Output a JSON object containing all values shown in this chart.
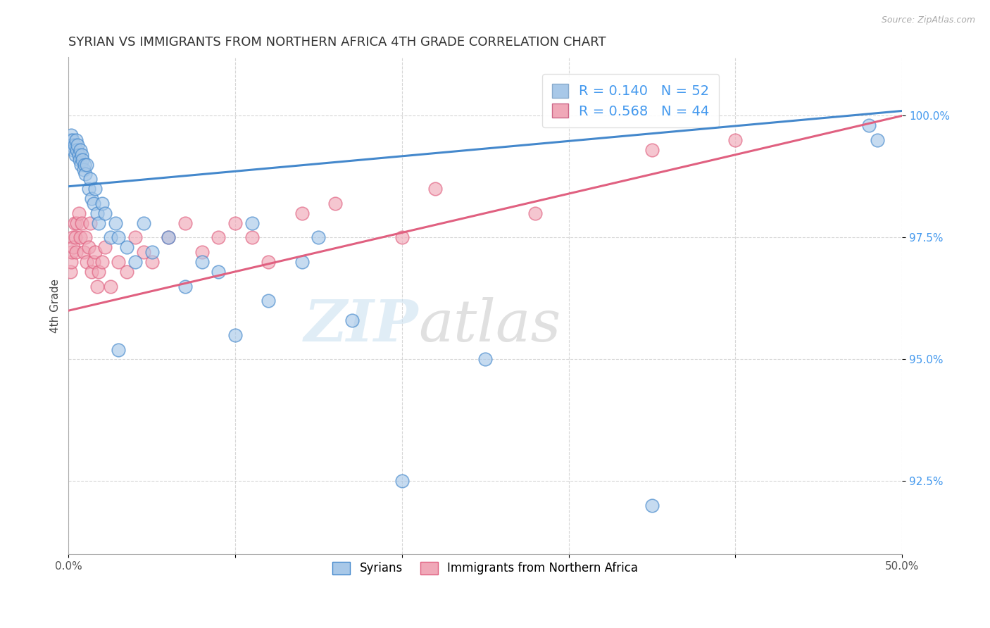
{
  "title": "SYRIAN VS IMMIGRANTS FROM NORTHERN AFRICA 4TH GRADE CORRELATION CHART",
  "source": "Source: ZipAtlas.com",
  "ylabel": "4th Grade",
  "xlim": [
    0.0,
    50.0
  ],
  "ylim": [
    91.0,
    101.2
  ],
  "x_ticks": [
    0.0,
    10.0,
    20.0,
    30.0,
    40.0,
    50.0
  ],
  "x_tick_labels": [
    "0.0%",
    "",
    "",
    "",
    "",
    "50.0%"
  ],
  "y_ticks": [
    92.5,
    95.0,
    97.5,
    100.0
  ],
  "y_tick_labels": [
    "92.5%",
    "95.0%",
    "97.5%",
    "100.0%"
  ],
  "legend_r1": "R = 0.140",
  "legend_n1": "N = 52",
  "legend_r2": "R = 0.568",
  "legend_n2": "N = 44",
  "color_blue": "#a8c8e8",
  "color_pink": "#f0a8b8",
  "color_blue_line": "#4488cc",
  "color_pink_line": "#e06080",
  "color_blue_dark": "#4488cc",
  "color_pink_dark": "#e06080",
  "syrians_x": [
    0.1,
    0.15,
    0.2,
    0.25,
    0.3,
    0.35,
    0.4,
    0.45,
    0.5,
    0.55,
    0.6,
    0.65,
    0.7,
    0.75,
    0.8,
    0.85,
    0.9,
    0.95,
    1.0,
    1.1,
    1.2,
    1.3,
    1.4,
    1.5,
    1.6,
    1.7,
    1.8,
    2.0,
    2.2,
    2.5,
    2.8,
    3.0,
    3.5,
    4.0,
    5.0,
    6.0,
    7.0,
    8.0,
    9.0,
    10.0,
    11.0,
    12.0,
    14.0,
    15.0,
    17.0,
    20.0,
    25.0,
    35.0,
    48.0,
    48.5,
    3.0,
    4.5
  ],
  "syrians_y": [
    99.5,
    99.6,
    99.4,
    99.5,
    99.3,
    99.4,
    99.2,
    99.5,
    99.3,
    99.4,
    99.2,
    99.1,
    99.3,
    99.0,
    99.2,
    99.1,
    98.9,
    99.0,
    98.8,
    99.0,
    98.5,
    98.7,
    98.3,
    98.2,
    98.5,
    98.0,
    97.8,
    98.2,
    98.0,
    97.5,
    97.8,
    97.5,
    97.3,
    97.0,
    97.2,
    97.5,
    96.5,
    97.0,
    96.8,
    95.5,
    97.8,
    96.2,
    97.0,
    97.5,
    95.8,
    92.5,
    95.0,
    92.0,
    99.8,
    99.5,
    95.2,
    97.8
  ],
  "northern_africa_x": [
    0.1,
    0.15,
    0.2,
    0.25,
    0.3,
    0.35,
    0.4,
    0.45,
    0.5,
    0.6,
    0.7,
    0.8,
    0.9,
    1.0,
    1.1,
    1.2,
    1.3,
    1.4,
    1.5,
    1.6,
    1.7,
    1.8,
    2.0,
    2.2,
    2.5,
    3.0,
    3.5,
    4.0,
    4.5,
    5.0,
    6.0,
    7.0,
    8.0,
    9.0,
    10.0,
    11.0,
    12.0,
    14.0,
    16.0,
    20.0,
    22.0,
    28.0,
    35.0,
    40.0
  ],
  "northern_africa_y": [
    96.8,
    97.0,
    97.2,
    97.5,
    97.3,
    97.8,
    97.5,
    97.2,
    97.8,
    98.0,
    97.5,
    97.8,
    97.2,
    97.5,
    97.0,
    97.3,
    97.8,
    96.8,
    97.0,
    97.2,
    96.5,
    96.8,
    97.0,
    97.3,
    96.5,
    97.0,
    96.8,
    97.5,
    97.2,
    97.0,
    97.5,
    97.8,
    97.2,
    97.5,
    97.8,
    97.5,
    97.0,
    98.0,
    98.2,
    97.5,
    98.5,
    98.0,
    99.3,
    99.5
  ],
  "blue_line_x": [
    0.0,
    50.0
  ],
  "blue_line_y": [
    98.55,
    100.1
  ],
  "pink_line_x": [
    0.0,
    50.0
  ],
  "pink_line_y": [
    96.0,
    100.0
  ]
}
